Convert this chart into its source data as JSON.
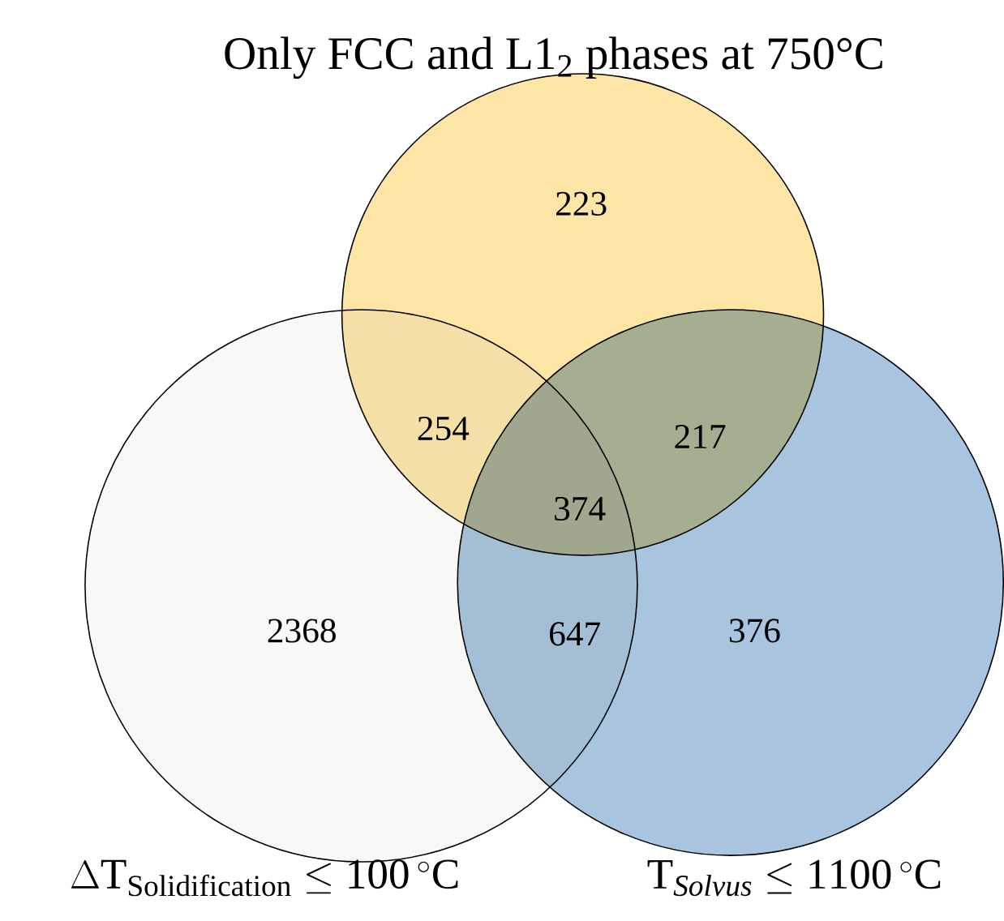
{
  "chart_data": {
    "type": "other",
    "title": "Only FCC and L1$_{2}$ phases at 750°C",
    "categories": [
      null,
      null,
      null,
      null,
      null,
      null,
      null
    ],
    "values": [
      223,
      254,
      217,
      374,
      2368,
      647,
      376
    ],
    "colors": [
      "#fde5a6",
      "#f4dfa6",
      "#a5ae91",
      "#a1a78e",
      "#f8f8f6",
      "#a4bed5",
      "#a8c4de"
    ],
    "annotations": [
      "\\Delta\\mathrm{T}_{\\mathrm{Solidification}}\\leq\\mathrm{100\\,^{\\circ}C}",
      "\\mathrm{T}_{\\mathit{Solvus}}\\leq\\mathrm{1100\\,^{\\circ}C}"
    ],
    "data_labels": true
  }
}
